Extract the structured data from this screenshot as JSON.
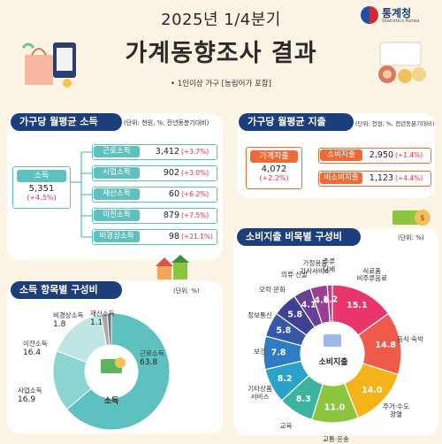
{
  "header": {
    "year_title": "2025년 1/4분기",
    "main_title": "가계동향조사 결과",
    "note": "• 1인이상 가구 [농림어가 포함]",
    "logo_korean": "통계청",
    "logo_english": "Statistics Korea"
  },
  "income": {
    "label": "가구당 월평균 소득",
    "unit": "(단위: 천원, %, 전년동분기대비)",
    "total": {
      "name": "소득",
      "value": "5,351",
      "change": "(+4.5%)"
    },
    "items": [
      {
        "name": "근로소득",
        "value": "3,412",
        "change": "(+3.7%)"
      },
      {
        "name": "사업소득",
        "value": "902",
        "change": "(+3.0%)"
      },
      {
        "name": "재산소득",
        "value": "60",
        "change": "(+6.2%)"
      },
      {
        "name": "이전소득",
        "value": "879",
        "change": "(+7.5%)"
      },
      {
        "name": "비경상소득",
        "value": "98",
        "change": "(+21.1%)"
      }
    ]
  },
  "expense": {
    "label": "가구당 월평균 지출",
    "unit": "(단위: 천원, %, 전년동분기대비)",
    "total": {
      "name": "가계지출",
      "value": "4,072",
      "change": "(+2.2%)"
    },
    "items": [
      {
        "name": "소비지출",
        "value": "2,950",
        "change": "(+1.4%)"
      },
      {
        "name": "비소비지출",
        "value": "1,123",
        "change": "(+4.4%)"
      }
    ]
  },
  "income_comp": {
    "label": "소득 항목별 구성비",
    "unit": "(단위: %)",
    "center": "소득"
  },
  "cons_comp": {
    "label": "소비지출 비목별 구성비",
    "unit": "(단위: %)",
    "center": "소비지출"
  },
  "chart_data": [
    {
      "type": "pie",
      "title": "소득 항목별 구성비",
      "categories": [
        "근로소득",
        "사업소득",
        "이전소득",
        "비경상소득",
        "재산소득"
      ],
      "values": [
        63.8,
        16.9,
        16.4,
        1.8,
        1.1
      ],
      "colors": [
        "#5fc1bf",
        "#8cd4d1",
        "#bfe6e4",
        "#a9a9a9",
        "#6f6f6f"
      ]
    },
    {
      "type": "pie",
      "title": "소비지출 비목별 구성비",
      "categories": [
        "식료품 비주류음료",
        "음식·숙박",
        "주거·수도 광열",
        "교통·운송",
        "교육",
        "기타상품 서비스",
        "보건",
        "정보통신",
        "오락·문화",
        "의류·신발",
        "가정용품 가사서비스",
        "주류 담배"
      ],
      "labels": [
        "식료품\n비주류음료",
        "음식·숙박",
        "주거·수도\n광열",
        "교통·운송",
        "교육",
        "기타상품\n서비스",
        "보건",
        "정보통신",
        "오락·문화",
        "의류·신발",
        "가정용품\n가사서비스",
        "주류\n담배"
      ],
      "values": [
        15.1,
        14.8,
        14.0,
        11.0,
        8.3,
        8.2,
        7.8,
        5.8,
        5.8,
        4.1,
        4.0,
        1.2
      ],
      "colors": [
        "#e8366b",
        "#f05a4a",
        "#f5b31a",
        "#8cc63f",
        "#3bb39e",
        "#2aa3c9",
        "#2f7cc4",
        "#3559a8",
        "#3f3f94",
        "#6a3f96",
        "#9a3e94",
        "#c43a86"
      ]
    }
  ]
}
